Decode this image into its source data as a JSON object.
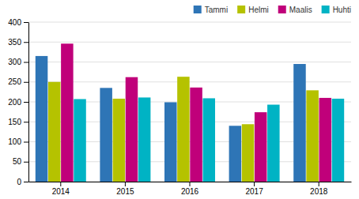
{
  "chart_data": {
    "type": "bar",
    "categories": [
      "2014",
      "2015",
      "2016",
      "2017",
      "2018"
    ],
    "series": [
      {
        "name": "Tammi",
        "color": "#2e75b6",
        "values": [
          315,
          235,
          199,
          140,
          295
        ]
      },
      {
        "name": "Helmi",
        "color": "#b5c200",
        "values": [
          250,
          208,
          263,
          144,
          229
        ]
      },
      {
        "name": "Maalis",
        "color": "#c0007a",
        "values": [
          346,
          262,
          236,
          174,
          210
        ]
      },
      {
        "name": "Huhti",
        "color": "#00b3c4",
        "values": [
          207,
          211,
          209,
          193,
          208
        ]
      }
    ],
    "ylim": [
      0,
      400
    ],
    "yticks": [
      0,
      50,
      100,
      150,
      200,
      250,
      300,
      350,
      400
    ],
    "grid": true,
    "legend": "upper right"
  }
}
